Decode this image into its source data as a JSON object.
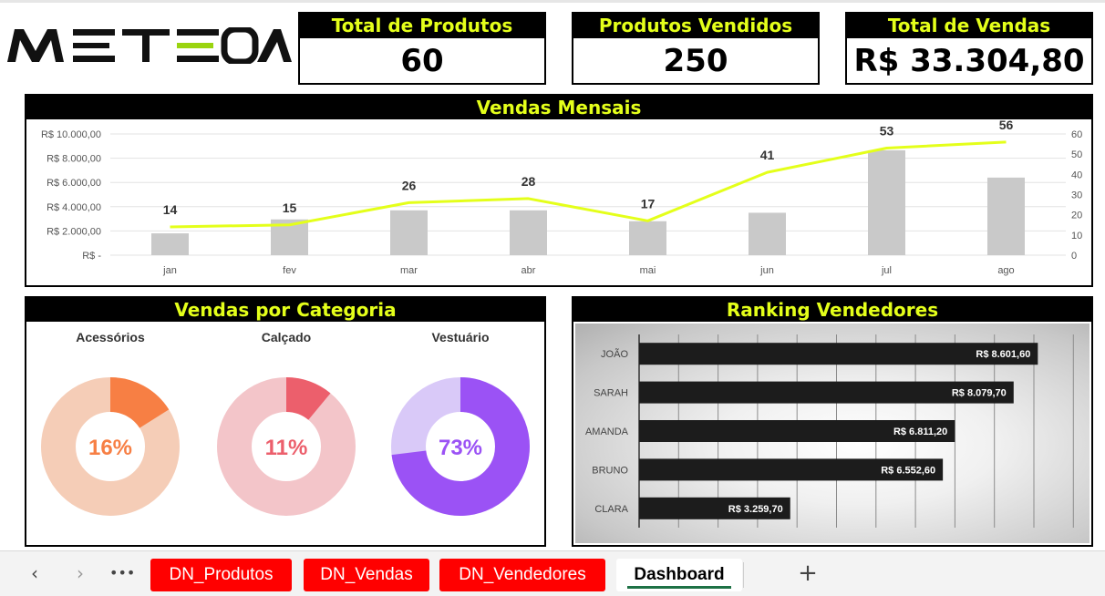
{
  "logo": {
    "text": "METEORA",
    "icon": "meteora-logo"
  },
  "kpis": [
    {
      "label": "Total de Produtos",
      "value": "60"
    },
    {
      "label": "Produtos Vendidos",
      "value": "250"
    },
    {
      "label": "Total de Vendas",
      "value": "R$ 33.304,80"
    }
  ],
  "panels": {
    "monthly_title": "Vendas Mensais",
    "category_title": "Vendas por Categoria",
    "ranking_title": "Ranking Vendedores"
  },
  "chart_data": [
    {
      "type": "bar",
      "title": "Vendas Mensais",
      "categories": [
        "jan",
        "fev",
        "mar",
        "abr",
        "mai",
        "jun",
        "jul",
        "ago"
      ],
      "series": [
        {
          "values": [
            1800,
            2950,
            3700,
            3700,
            2800,
            3500,
            8650,
            6400
          ],
          "axis": "left",
          "color": "#c9c9c9"
        },
        {
          "values": [
            14,
            15,
            26,
            28,
            17,
            41,
            53,
            56
          ],
          "axis": "right",
          "type": "line",
          "color": "#e4ff1a",
          "labels": [
            "14",
            "15",
            "26",
            "28",
            "17",
            "41",
            "53",
            "56"
          ]
        }
      ],
      "y_left": {
        "ticks": [
          "R$ -",
          "R$ 2.000,00",
          "R$ 4.000,00",
          "R$ 6.000,00",
          "R$ 8.000,00",
          "R$ 10.000,00"
        ],
        "lim": [
          0,
          10000
        ]
      },
      "y_right": {
        "ticks": [
          "0",
          "10",
          "20",
          "30",
          "40",
          "50",
          "60"
        ],
        "lim": [
          0,
          60
        ]
      },
      "grid": true
    },
    {
      "type": "pie",
      "title": "Vendas por Categoria",
      "donuts": [
        {
          "name": "Acessórios",
          "value": 16,
          "label": "16%",
          "color": "#f77f44",
          "track": "#f5cdb7"
        },
        {
          "name": "Calçado",
          "value": 11,
          "label": "11%",
          "color": "#ec5f6c",
          "track": "#f3c5c9"
        },
        {
          "name": "Vestuário",
          "value": 73,
          "label": "73%",
          "color": "#9b52f5",
          "track": "#d9c9f8"
        }
      ]
    },
    {
      "type": "bar",
      "title": "Ranking Vendedores",
      "orientation": "horizontal",
      "categories": [
        "JOÃO",
        "SARAH",
        "AMANDA",
        "BRUNO",
        "CLARA"
      ],
      "values": [
        8601.6,
        8079.7,
        6811.2,
        6552.6,
        3259.7
      ],
      "labels": [
        "R$ 8.601,60",
        "R$ 8.079,70",
        "R$ 6.811,20",
        "R$ 6.552,60",
        "R$ 3.259,70"
      ],
      "xlim": [
        0,
        9500
      ],
      "grid": true,
      "color": "#1c1c1c"
    }
  ],
  "tabbar": {
    "prev_icon": "chevron-left-icon",
    "next_icon": "chevron-right-icon",
    "more_icon": "more-icon",
    "add_icon": "plus-icon",
    "tabs": [
      {
        "label": "DN_Produtos"
      },
      {
        "label": "DN_Vendas"
      },
      {
        "label": "DN_Vendedores"
      },
      {
        "label": "Dashboard"
      }
    ]
  },
  "colors": {
    "accent": "#e4ff1a",
    "header_bg": "#000000",
    "tab_red": "#ff0000"
  }
}
